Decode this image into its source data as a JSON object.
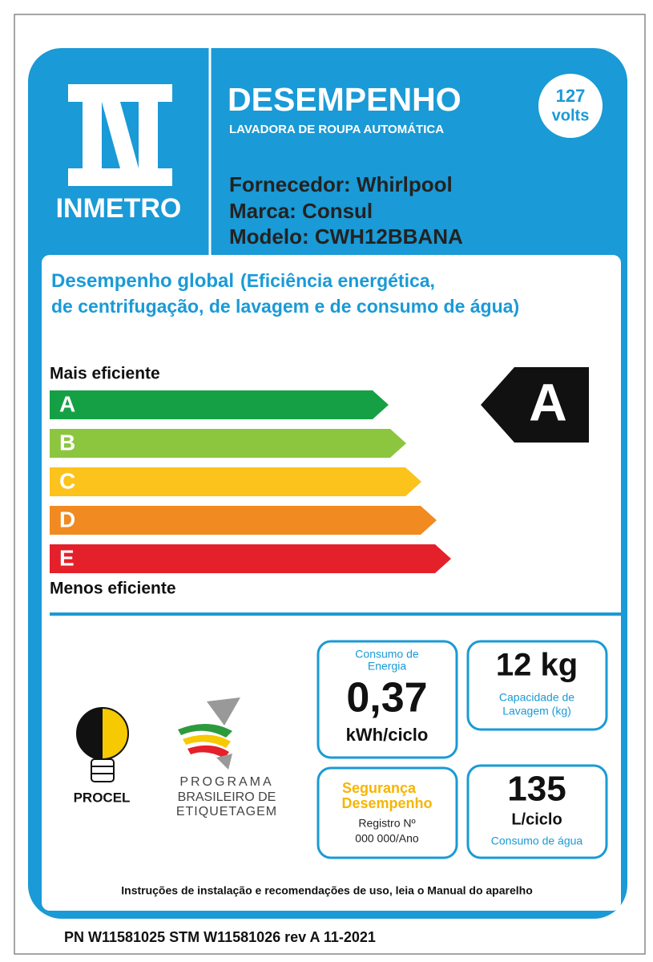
{
  "header": {
    "logo": "INMETRO",
    "title": "DESEMPENHO",
    "subtitle": "LAVADORA DE ROUPA AUTOMÁTICA",
    "voltage": "127",
    "voltage_unit": "volts",
    "supplier": "Fornecedor: Whirlpool",
    "brand": "Marca: Consul",
    "model": "Modelo: CWH12BBANA"
  },
  "rating": {
    "heading": "Desempenho global",
    "heading_note": "(Eficiência energética,",
    "heading_line2": "de centrifugação, de lavagem e de consumo de água)",
    "top_label": "Mais eficiente",
    "bottom_label": "Menos eficiente",
    "classes": [
      "A",
      "B",
      "C",
      "D",
      "E"
    ],
    "result": "A"
  },
  "energy": {
    "label_line1": "Consumo de",
    "label_line2": "Energia",
    "value": "0,37",
    "unit": "kWh/ciclo"
  },
  "capacity": {
    "value": "12 kg",
    "label_line1": "Capacidade de",
    "label_line2": "Lavagem (kg)"
  },
  "safety": {
    "line1": "Segurança",
    "line2": "Desempenho",
    "registry": "Registro Nº",
    "registry_number": "000 000/Ano"
  },
  "water": {
    "value": "135",
    "unit": "L/ciclo",
    "label": "Consumo  de água"
  },
  "logos": {
    "procel": "PROCEL",
    "pbe_line1": "PROGRAMA",
    "pbe_line2": "BRASILEIRO DE",
    "pbe_line3": "ETIQUETAGEM"
  },
  "footer": {
    "instructions": "Instruções de instalação e recomendações de uso, leia o Manual do aparelho",
    "part_number": "PN W11581025 STM W11581026  rev A 11-2021"
  }
}
